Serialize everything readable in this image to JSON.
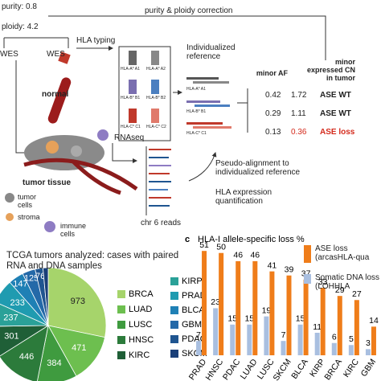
{
  "diagram": {
    "purity": "purity: 0.8",
    "ploidy": "ploidy: 4.2",
    "correction": "purity & ploidy correction",
    "wes": [
      "WES",
      "WES"
    ],
    "hla_typing": "HLA typing",
    "normal": "normal",
    "alleles": [
      "HLA-A* A1",
      "HLA-A* A2",
      "HLA-B* B1",
      "HLA-B* B2",
      "HLA-C* C1",
      "HLA-C* C2"
    ],
    "reference": "Individualized reference",
    "read_labels": [
      "HLA-A* A1",
      "HLA-B* B1",
      "HLA-C* C1"
    ],
    "table": {
      "headers": [
        "minor AF",
        "minor expressed CN in tumor"
      ],
      "rows": [
        [
          0.42,
          1.72,
          "ASE WT"
        ],
        [
          0.29,
          1.11,
          "ASE WT"
        ],
        [
          0.13,
          0.36,
          "ASE loss"
        ]
      ]
    },
    "rnaseq": "RNAseq",
    "chr6": "chr 6 reads",
    "pseudo": "Pseudo-alignment to individualized reference",
    "quant": "HLA expression quantification",
    "tumor_tissue": "tumor tissue",
    "legend": [
      "tumor cells",
      "stroma",
      "immune cells"
    ]
  },
  "chart_data": [
    {
      "type": "pie",
      "title": "TCGA tumors analyzed: cases with paired RNA and DNA samples",
      "categories": [
        "BRCA",
        "LUAD",
        "LUSC",
        "HNSC",
        "KIRC",
        "KIRP",
        "PRAD",
        "BLCA",
        "GBM",
        "PDAC",
        "SKCM"
      ],
      "values": [
        973,
        471,
        384,
        446,
        301,
        237,
        233,
        147,
        125,
        76,
        50
      ],
      "value_labels": [
        "973",
        "471",
        "384",
        "446",
        "301",
        "237",
        "233",
        "147",
        "125",
        "76",
        null
      ],
      "colors": [
        "#a6d46b",
        "#6dbf4f",
        "#3f9b3f",
        "#2c7b3b",
        "#1f5f37",
        "#2aa198",
        "#1f9bb0",
        "#1f80b5",
        "#2469a8",
        "#1f5590",
        "#1a3f78"
      ]
    },
    {
      "type": "bar",
      "panel": "c",
      "title": "HLA-I allele-specific loss %",
      "categories": [
        "PRAD",
        "HNSC",
        "PDAC",
        "LUAD",
        "LUSC",
        "SKCM",
        "BLCA",
        "KIRP",
        "BRCA",
        "KIRC",
        "GBM"
      ],
      "series": [
        {
          "name": "ASE loss (arcasHLA-qua",
          "color": "#ef7d1a",
          "values": [
            51,
            50,
            46,
            46,
            41,
            39,
            37,
            33,
            29,
            27,
            14
          ]
        },
        {
          "name": "Somatic DNA loss (LOHHLA",
          "color": "#a9bfe0",
          "values": [
            7,
            23,
            15,
            15,
            19,
            7,
            15,
            11,
            6,
            5,
            3
          ]
        }
      ],
      "ylim": [
        0,
        55
      ]
    }
  ]
}
